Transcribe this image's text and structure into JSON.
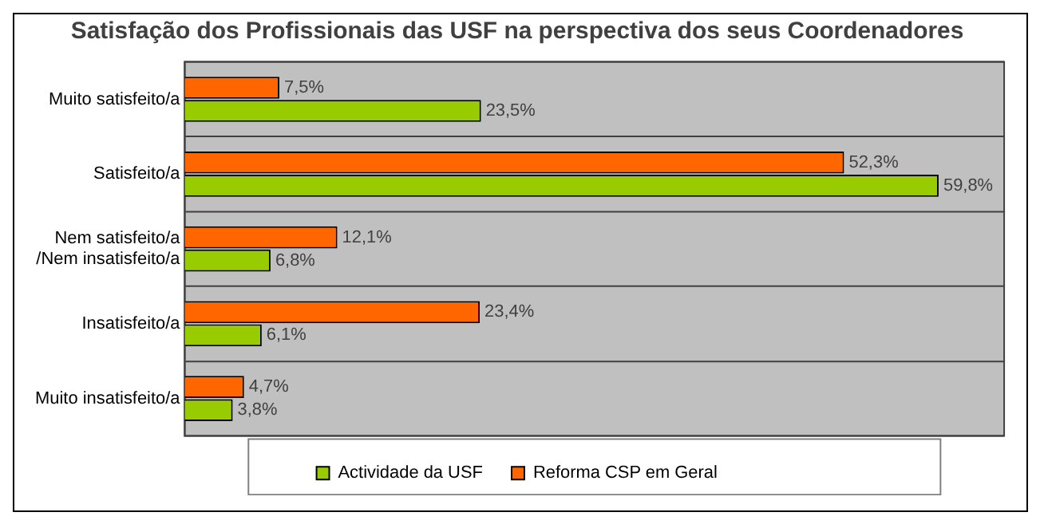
{
  "chart_data": {
    "type": "bar",
    "orientation": "horizontal",
    "title": "Satisfação dos Profissionais das USF na perspectiva dos seus Coordenadores",
    "categories": [
      "Muito satisfeito/a",
      "Satisfeito/a",
      "Nem satisfeito/a /Nem insatisfeito/a",
      "Insatisfeito/a",
      "Muito insatisfeito/a"
    ],
    "series": [
      {
        "name": "Actividade da USF",
        "color": "#99cc00",
        "values": [
          23.5,
          59.8,
          6.8,
          6.1,
          3.8
        ],
        "value_labels": [
          "23,5%",
          "59,8%",
          "6,8%",
          "6,1%",
          "3,8%"
        ]
      },
      {
        "name": "Reforma CSP em Geral",
        "color": "#ff6600",
        "values": [
          7.5,
          52.3,
          12.1,
          23.4,
          4.7
        ],
        "value_labels": [
          "7,5%",
          "52,3%",
          "12,1%",
          "23,4%",
          "4,7%"
        ]
      }
    ],
    "xlim": [
      0,
      65
    ],
    "tick_labels": "y",
    "grid": "y",
    "legend": "bottom"
  }
}
